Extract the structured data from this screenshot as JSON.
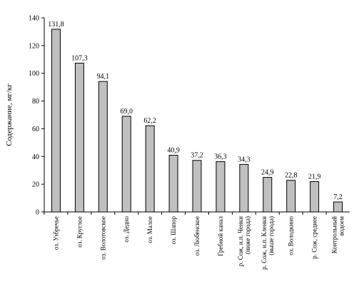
{
  "chart_data": {
    "type": "bar",
    "title": "",
    "xlabel": "",
    "ylabel": "Содержание, мг/кг",
    "ylim": [
      0,
      140
    ],
    "yticks": [
      0,
      20,
      40,
      60,
      80,
      100,
      120,
      140
    ],
    "grid": false,
    "colors": {
      "bar_fill": "#c0c0c0",
      "bar_stroke": "#000000",
      "axis": "#000000"
    },
    "categories": [
      [
        "оз. Узбречье"
      ],
      [
        "оз. Круглое"
      ],
      [
        "оз. Волотовское"
      ],
      [
        "оз. Дедно"
      ],
      [
        "оз. Малое"
      ],
      [
        "оз. Шапор"
      ],
      [
        "оз. Любенское"
      ],
      [
        "Гребной канал"
      ],
      [
        "р. Сож, н.п. Ченки",
        "(ниже города)"
      ],
      [
        "р. Сож, н.п. Кленки",
        "(выше города)"
      ],
      [
        "оз. Володкино"
      ],
      [
        "р. Сож, среднее"
      ],
      [
        "Контрольный",
        "водоем"
      ]
    ],
    "values": [
      131.8,
      107.3,
      94.1,
      69.0,
      62.2,
      40.9,
      37.2,
      36.3,
      34.3,
      24.9,
      22.8,
      21.9,
      7.2
    ],
    "value_labels": [
      "131,8",
      "107,3",
      "94,1",
      "69,0",
      "62,2",
      "40,9",
      "37,2",
      "36,3",
      "34,3",
      "24,9",
      "22,8",
      "21,9",
      "7,2"
    ]
  }
}
